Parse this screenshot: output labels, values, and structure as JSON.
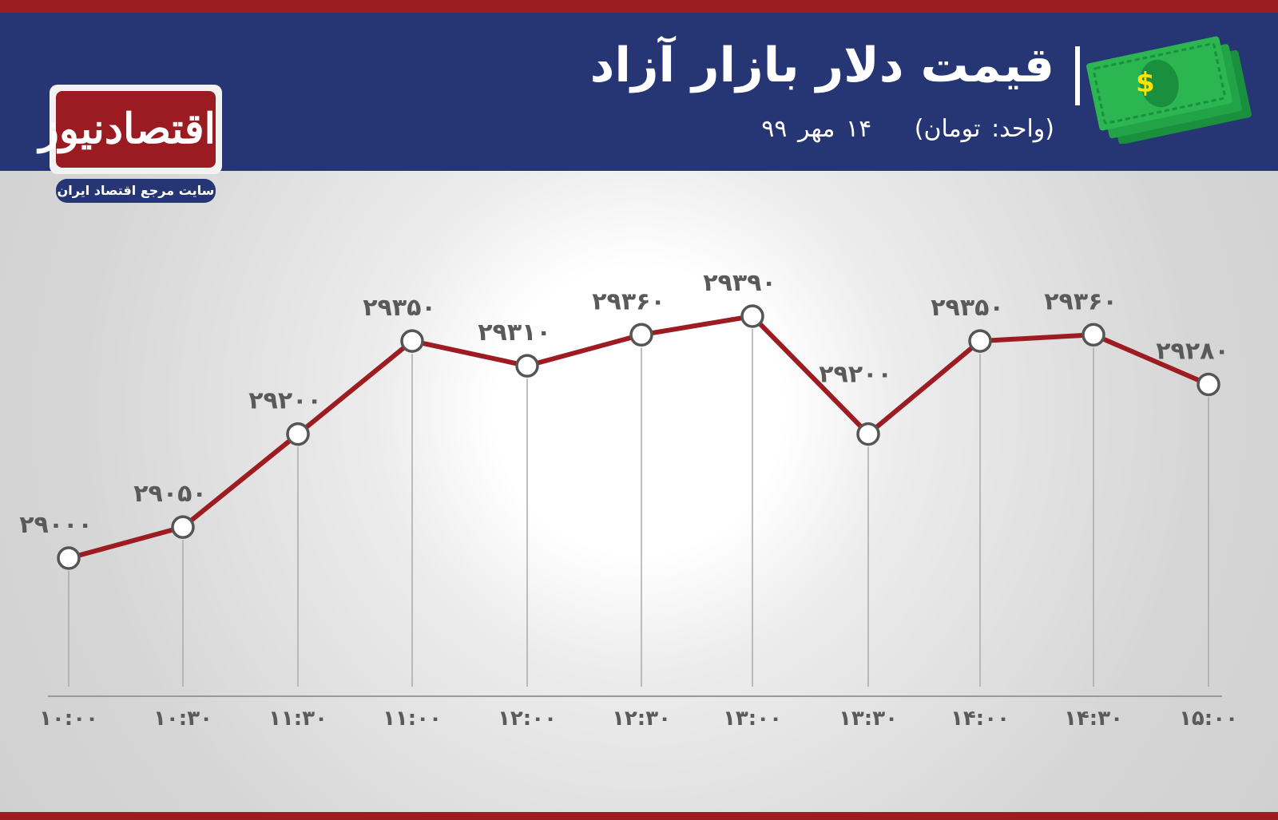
{
  "header": {
    "title": "قیمت دلار بازار آزاد",
    "unit": "(واحد: تومان)",
    "date": "۱۴ مهر ۹۹"
  },
  "logo": {
    "name": "اقتصادنیوز",
    "tagline": "سایت مرجع اقتصاد ایران"
  },
  "icons": [
    "money-icon",
    "dollar-sign-icon"
  ],
  "colors": {
    "header": "#263573",
    "accent_red": "#9c1c22",
    "line": "#9c1c22",
    "marker_stroke": "#555555",
    "money_green": "#1faa4a"
  },
  "chart_data": {
    "type": "line",
    "categories": [
      "10:00",
      "10:30",
      "11:30",
      "11:00",
      "12:00",
      "12:30",
      "13:00",
      "13:30",
      "14:00",
      "14:30",
      "15:00"
    ],
    "series": [
      {
        "values": [
          29000,
          29050,
          29200,
          29350,
          29310,
          29360,
          29390,
          29200,
          29350,
          29360,
          29280
        ],
        "value_labels": [
          "۲۹۰۰۰",
          "۲۹۰۵۰",
          "۲۹۲۰۰",
          "۲۹۳۵۰",
          "۲۹۳۱۰",
          "۲۹۳۶۰",
          "۲۹۳۹۰",
          "۲۹۲۰۰",
          "۲۹۳۵۰",
          "۲۹۳۶۰",
          "۲۹۲۸۰"
        ],
        "color": "#9c1c22"
      }
    ],
    "tick_labels": [
      "۱۰:۰۰",
      "۱۰:۳۰",
      "۱۱:۳۰",
      "۱۱:۰۰",
      "۱۲:۰۰",
      "۱۲:۳۰",
      "۱۳:۰۰",
      "۱۳:۳۰",
      "۱۴:۰۰",
      "۱۴:۳۰",
      "۱۵:۰۰"
    ],
    "ylim": [
      28850,
      29450
    ],
    "grid": "vertical drop lines",
    "legend": "none"
  }
}
